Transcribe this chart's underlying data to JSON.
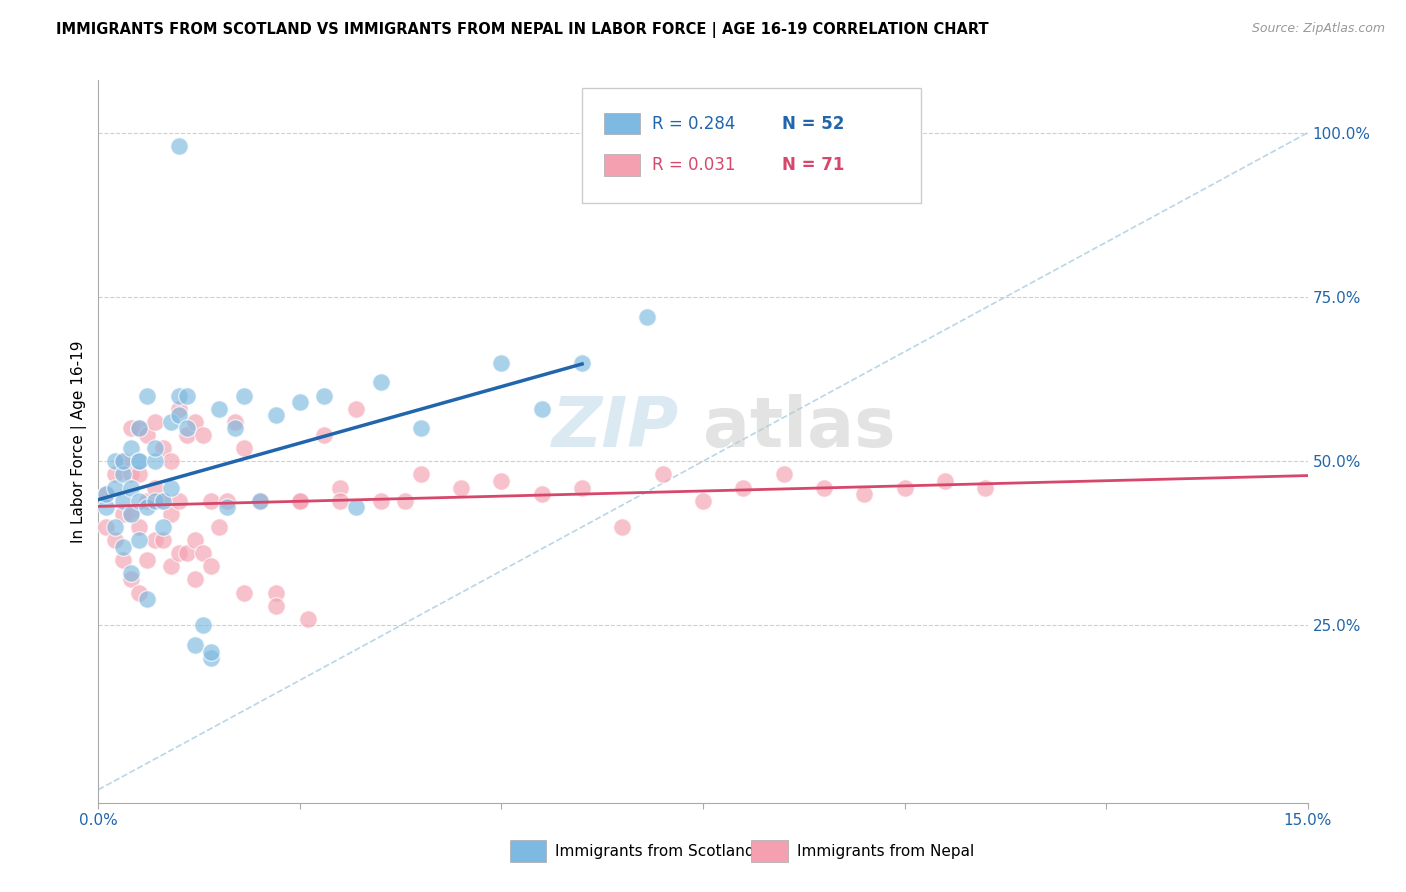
{
  "title": "IMMIGRANTS FROM SCOTLAND VS IMMIGRANTS FROM NEPAL IN LABOR FORCE | AGE 16-19 CORRELATION CHART",
  "source": "Source: ZipAtlas.com",
  "ylabel": "In Labor Force | Age 16-19",
  "xlim": [
    0.0,
    0.15
  ],
  "ylim": [
    -0.02,
    1.08
  ],
  "xticks": [
    0.0,
    0.025,
    0.05,
    0.075,
    0.1,
    0.125,
    0.15
  ],
  "xticklabels": [
    "0.0%",
    "",
    "",
    "",
    "",
    "",
    "15.0%"
  ],
  "yticks_right": [
    0.25,
    0.5,
    0.75,
    1.0
  ],
  "yticklabels_right": [
    "25.0%",
    "50.0%",
    "75.0%",
    "100.0%"
  ],
  "scotland_R": 0.284,
  "scotland_N": 52,
  "nepal_R": 0.031,
  "nepal_N": 71,
  "scotland_color": "#7db9e0",
  "nepal_color": "#f4a0b0",
  "scotland_line_color": "#2166ac",
  "nepal_line_color": "#d6476b",
  "diagonal_color": "#a8cce0",
  "legend_label_scotland": "Immigrants from Scotland",
  "legend_label_nepal": "Immigrants from Nepal",
  "watermark_zip": "ZIP",
  "watermark_atlas": "atlas",
  "scotland_x": [
    0.001,
    0.001,
    0.002,
    0.002,
    0.002,
    0.003,
    0.003,
    0.003,
    0.003,
    0.004,
    0.004,
    0.004,
    0.004,
    0.005,
    0.005,
    0.005,
    0.005,
    0.005,
    0.006,
    0.006,
    0.006,
    0.007,
    0.007,
    0.007,
    0.008,
    0.008,
    0.009,
    0.009,
    0.01,
    0.01,
    0.011,
    0.011,
    0.012,
    0.013,
    0.014,
    0.014,
    0.015,
    0.016,
    0.017,
    0.018,
    0.02,
    0.022,
    0.025,
    0.028,
    0.032,
    0.035,
    0.04,
    0.05,
    0.055,
    0.06,
    0.068,
    0.01
  ],
  "scotland_y": [
    0.43,
    0.45,
    0.4,
    0.46,
    0.5,
    0.37,
    0.44,
    0.48,
    0.5,
    0.42,
    0.33,
    0.46,
    0.52,
    0.38,
    0.44,
    0.5,
    0.5,
    0.55,
    0.29,
    0.43,
    0.6,
    0.44,
    0.5,
    0.52,
    0.4,
    0.44,
    0.46,
    0.56,
    0.57,
    0.6,
    0.55,
    0.6,
    0.22,
    0.25,
    0.2,
    0.21,
    0.58,
    0.43,
    0.55,
    0.6,
    0.44,
    0.57,
    0.59,
    0.6,
    0.43,
    0.62,
    0.55,
    0.65,
    0.58,
    0.65,
    0.72,
    0.98
  ],
  "nepal_x": [
    0.001,
    0.001,
    0.002,
    0.002,
    0.003,
    0.003,
    0.003,
    0.004,
    0.004,
    0.004,
    0.004,
    0.005,
    0.005,
    0.005,
    0.005,
    0.006,
    0.006,
    0.006,
    0.007,
    0.007,
    0.007,
    0.008,
    0.008,
    0.008,
    0.009,
    0.009,
    0.009,
    0.01,
    0.01,
    0.01,
    0.011,
    0.011,
    0.012,
    0.012,
    0.013,
    0.013,
    0.014,
    0.015,
    0.016,
    0.017,
    0.018,
    0.02,
    0.022,
    0.025,
    0.025,
    0.028,
    0.03,
    0.032,
    0.035,
    0.038,
    0.04,
    0.045,
    0.05,
    0.055,
    0.06,
    0.065,
    0.07,
    0.075,
    0.08,
    0.085,
    0.09,
    0.095,
    0.1,
    0.105,
    0.11,
    0.012,
    0.014,
    0.018,
    0.022,
    0.026,
    0.03
  ],
  "nepal_y": [
    0.4,
    0.45,
    0.38,
    0.48,
    0.35,
    0.42,
    0.5,
    0.32,
    0.42,
    0.48,
    0.55,
    0.3,
    0.4,
    0.48,
    0.55,
    0.35,
    0.44,
    0.54,
    0.38,
    0.46,
    0.56,
    0.38,
    0.44,
    0.52,
    0.34,
    0.42,
    0.5,
    0.36,
    0.44,
    0.58,
    0.36,
    0.54,
    0.38,
    0.56,
    0.36,
    0.54,
    0.44,
    0.4,
    0.44,
    0.56,
    0.52,
    0.44,
    0.3,
    0.44,
    0.44,
    0.54,
    0.46,
    0.58,
    0.44,
    0.44,
    0.48,
    0.46,
    0.47,
    0.45,
    0.46,
    0.4,
    0.48,
    0.44,
    0.46,
    0.48,
    0.46,
    0.45,
    0.46,
    0.47,
    0.46,
    0.32,
    0.34,
    0.3,
    0.28,
    0.26,
    0.44
  ]
}
